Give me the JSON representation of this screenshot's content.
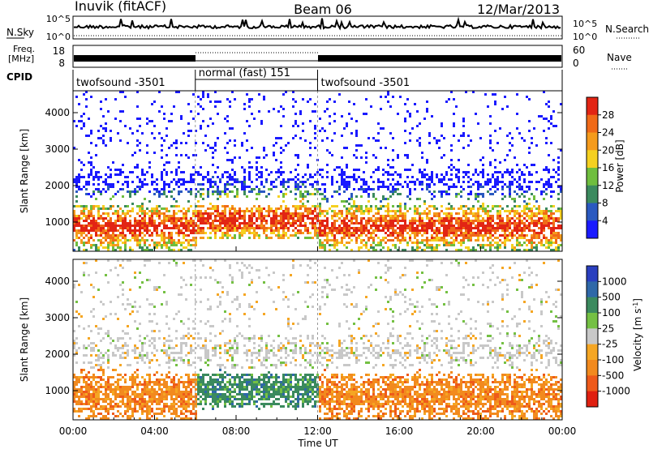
{
  "header": {
    "station": "Inuvik (fitACF)",
    "beam": "Beam 06",
    "date": "12/Mar/2013"
  },
  "status_panels": {
    "left_labels": {
      "nsky": "N.Sky",
      "freq_line1": "Freq.",
      "freq_line2": "[MHz]",
      "cpid": "CPID"
    },
    "right_labels": {
      "nsearch": "N.Search",
      "nave": "Nave"
    },
    "noise_axis_ticks": [
      "10^5",
      "10^0"
    ],
    "freq_axis_ticks": [
      "18",
      "8"
    ],
    "nave_axis_ticks": [
      "60",
      "0"
    ],
    "cpid_segments": [
      {
        "label": "twofsound -3501",
        "start_hour": 0,
        "end_hour": 6
      },
      {
        "label": "normal (fast) 151",
        "start_hour": 6,
        "end_hour": 12
      },
      {
        "label": "twofsound -3501",
        "start_hour": 12,
        "end_hour": 24
      }
    ]
  },
  "x_axis": {
    "label": "Time UT",
    "ticks": [
      "00:00",
      "04:00",
      "08:00",
      "12:00",
      "16:00",
      "20:00",
      "00:00"
    ],
    "hours": [
      0,
      4,
      8,
      12,
      16,
      20,
      24
    ]
  },
  "chart_data": [
    {
      "type": "heatmap",
      "name": "power",
      "xlabel": "Time UT",
      "ylabel": "Slant Range [km]",
      "xlim": [
        0,
        24
      ],
      "ylim": [
        200,
        4600
      ],
      "yticks": [
        1000,
        2000,
        3000,
        4000
      ],
      "colorbar": {
        "label": "Power [dB]",
        "tick_labels": [
          "4",
          "8",
          "12",
          "16",
          "20",
          "24",
          "28"
        ],
        "colors": [
          "#1a1aff",
          "#2a59c0",
          "#3b8a5e",
          "#6fbe3e",
          "#f5d020",
          "#f59b1c",
          "#f06a18",
          "#e22514"
        ]
      }
    },
    {
      "type": "heatmap",
      "name": "velocity",
      "xlabel": "Time UT",
      "ylabel": "Slant Range [km]",
      "xlim": [
        0,
        24
      ],
      "ylim": [
        200,
        4600
      ],
      "yticks": [
        1000,
        2000,
        3000,
        4000
      ],
      "colorbar": {
        "label": "Velocity [m s^-1]",
        "tick_labels": [
          "1000",
          "500",
          "100",
          "25",
          "-25",
          "-100",
          "-500",
          "-1000"
        ],
        "colors": [
          "#2a3fbf",
          "#2f68a8",
          "#3b8a5e",
          "#74c043",
          "#c8c8c8",
          "#f5a623",
          "#f28a1e",
          "#ee5a1a",
          "#e02010"
        ]
      }
    }
  ]
}
